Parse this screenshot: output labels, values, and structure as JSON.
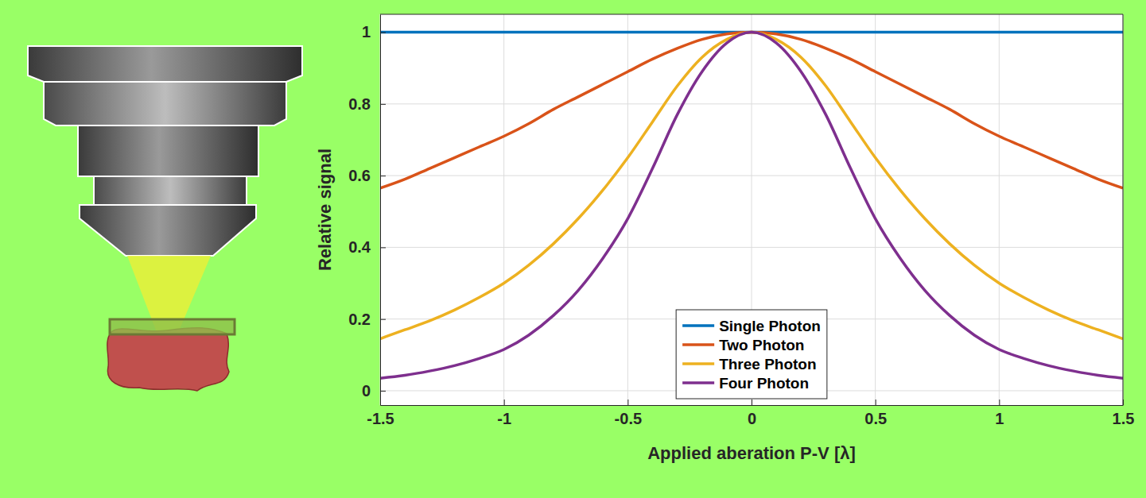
{
  "chart_data": {
    "type": "line",
    "x_label": "Applied aberation P-V [λ]",
    "y_label": "Relative signal",
    "x": [
      -1.5,
      -1.4,
      -1.3,
      -1.2,
      -1.1,
      -1,
      -0.9,
      -0.8,
      -0.7,
      -0.6,
      -0.5,
      -0.4,
      -0.3,
      -0.2,
      -0.1,
      0,
      0.1,
      0.2,
      0.3,
      0.4,
      0.5,
      0.6,
      0.7,
      0.8,
      0.9,
      1,
      1.1,
      1.2,
      1.3,
      1.4,
      1.5
    ],
    "series": [
      {
        "name": "Single Photon",
        "color": "#0072bd",
        "values": [
          1,
          1,
          1,
          1,
          1,
          1,
          1,
          1,
          1,
          1,
          1,
          1,
          1,
          1,
          1,
          1,
          1,
          1,
          1,
          1,
          1,
          1,
          1,
          1,
          1,
          1,
          1,
          1,
          1,
          1,
          1
        ]
      },
      {
        "name": "Two Photon",
        "color": "#d95319",
        "values": [
          0.565,
          0.59,
          0.62,
          0.65,
          0.68,
          0.71,
          0.745,
          0.785,
          0.82,
          0.855,
          0.89,
          0.925,
          0.955,
          0.98,
          0.995,
          1,
          0.995,
          0.98,
          0.955,
          0.925,
          0.89,
          0.855,
          0.82,
          0.785,
          0.745,
          0.71,
          0.68,
          0.65,
          0.62,
          0.59,
          0.565
        ]
      },
      {
        "name": "Three Photon",
        "color": "#edb120",
        "values": [
          0.145,
          0.17,
          0.195,
          0.225,
          0.26,
          0.3,
          0.35,
          0.41,
          0.48,
          0.56,
          0.65,
          0.75,
          0.85,
          0.93,
          0.98,
          1,
          0.98,
          0.93,
          0.85,
          0.75,
          0.65,
          0.56,
          0.48,
          0.41,
          0.35,
          0.3,
          0.26,
          0.225,
          0.195,
          0.17,
          0.145
        ]
      },
      {
        "name": "Four Photon",
        "color": "#7e2f8e",
        "values": [
          0.035,
          0.043,
          0.055,
          0.07,
          0.09,
          0.115,
          0.155,
          0.21,
          0.28,
          0.37,
          0.48,
          0.62,
          0.77,
          0.89,
          0.97,
          1,
          0.97,
          0.89,
          0.77,
          0.62,
          0.48,
          0.37,
          0.28,
          0.21,
          0.155,
          0.115,
          0.09,
          0.07,
          0.055,
          0.043,
          0.035
        ]
      }
    ],
    "xlim": [
      -1.5,
      1.5
    ],
    "xticks": [
      -1.5,
      -1,
      -0.5,
      0,
      0.5,
      1,
      1.5
    ],
    "ylim": [
      -0.04,
      1.05
    ],
    "yticks": [
      0,
      0.2,
      0.4,
      0.6,
      0.8,
      1
    ],
    "grid": true,
    "legend": "bottom"
  }
}
